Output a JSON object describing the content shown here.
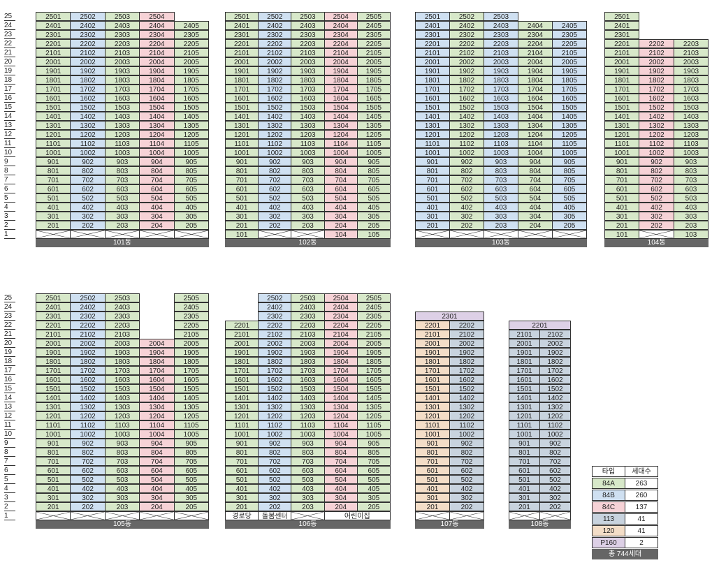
{
  "types": {
    "84A": {
      "color": "#d7e8c9"
    },
    "84B": {
      "color": "#cfe0f1"
    },
    "84C": {
      "color": "#f6d2d6"
    },
    "113": {
      "color": "#c8d3de"
    },
    "120": {
      "color": "#f3ddc7"
    },
    "P160": {
      "color": "#ddd0e6"
    }
  },
  "buildings": [
    {
      "name": "101동",
      "cols": [
        "84A",
        "84B",
        "84A",
        "84C",
        "84A"
      ],
      "groundLabels": [
        null,
        null,
        null,
        null,
        null
      ],
      "exceptions": {
        "25": [
          5
        ]
      }
    },
    {
      "name": "102동",
      "cols": [
        "84A",
        "84B",
        "84A",
        "84C",
        "84A"
      ],
      "groundLabels": [
        "101",
        null,
        null,
        "104",
        "105"
      ],
      "exceptions": {}
    },
    {
      "name": "103동",
      "cols": [
        "84B",
        "84A",
        "84B",
        "84A",
        "84B"
      ],
      "groundLabels": [
        null,
        null,
        null,
        null,
        null
      ],
      "exceptions": {
        "25": [
          4,
          5
        ]
      }
    },
    {
      "name": "104동",
      "cols": [
        "84A",
        "84C",
        "84A"
      ],
      "groundLabels": [
        "101",
        null,
        "103"
      ],
      "exceptions": {
        "25": [
          2,
          3
        ],
        "24": [
          2,
          3
        ],
        "23": [
          2,
          3
        ]
      }
    },
    {
      "name": "105동",
      "cols": [
        "84A",
        "84B",
        "84A",
        "84C",
        "84A"
      ],
      "groundLabels": [
        null,
        null,
        null,
        null,
        null
      ],
      "exceptions": {
        "25": [
          4
        ],
        "24": [
          4
        ],
        "23": [
          4
        ],
        "22": [
          4
        ],
        "21": [
          4
        ]
      }
    },
    {
      "name": "106동",
      "cols": [
        "84A",
        "84B",
        "84A",
        "84C",
        "84A"
      ],
      "groundLabels": [
        "경로당",
        "돌봄센터",
        null,
        "어린이집",
        null
      ],
      "groundSpan": [
        [
          4,
          5
        ]
      ],
      "exceptions": {
        "25": [
          1
        ],
        "24": [
          1
        ],
        "23": [
          1
        ]
      }
    },
    {
      "name": "107동",
      "cols": [
        "120",
        "113"
      ],
      "maxFloor": 22,
      "top": {
        "label": "2301",
        "type": "P160"
      },
      "groundLabels": [
        null,
        null
      ],
      "exceptions": {}
    },
    {
      "name": "108동",
      "cols": [
        "113",
        "113"
      ],
      "maxFloor": 21,
      "top": {
        "label": "2201",
        "type": "P160"
      },
      "groundLabels": [
        null,
        null
      ],
      "exceptions": {}
    }
  ],
  "floorsTop": [
    "25",
    "24",
    "23",
    "22",
    "21",
    "20",
    "19",
    "18",
    "17",
    "16",
    "15",
    "14",
    "13",
    "12",
    "11",
    "10",
    "9",
    "8",
    "7",
    "6",
    "5",
    "4",
    "3",
    "2",
    "1"
  ],
  "floorsBottom": [
    "25",
    "24",
    "23",
    "22",
    "21",
    "20",
    "19",
    "18",
    "17",
    "16",
    "15",
    "14",
    "13",
    "12",
    "11",
    "10",
    "9",
    "8",
    "7",
    "6",
    "5",
    "4",
    "3",
    "2",
    "1"
  ],
  "legend": {
    "header": [
      "타입",
      "세대수"
    ],
    "rows": [
      {
        "type": "84A",
        "count": "263"
      },
      {
        "type": "84B",
        "count": "260"
      },
      {
        "type": "84C",
        "count": "137"
      },
      {
        "type": "113",
        "count": "41"
      },
      {
        "type": "120",
        "count": "41"
      },
      {
        "type": "P160",
        "count": "2"
      }
    ],
    "total": "총 744세대"
  }
}
